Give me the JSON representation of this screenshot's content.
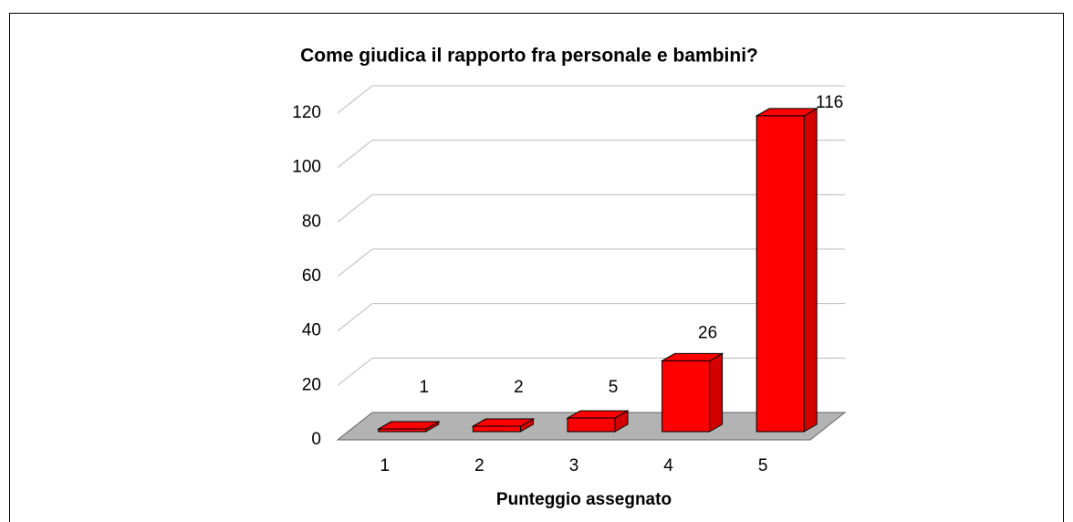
{
  "chart_data": {
    "type": "bar3d",
    "title": "Come giudica il rapporto fra personale e bambini?",
    "x_label": "Punteggio assegnato",
    "categories": [
      "1",
      "2",
      "3",
      "4",
      "5"
    ],
    "values": [
      1,
      2,
      5,
      26,
      116
    ],
    "color": "#ff0000",
    "ylim": [
      0,
      120
    ],
    "yticks": [
      0,
      20,
      40,
      60,
      80,
      100,
      120
    ],
    "grid": true
  }
}
